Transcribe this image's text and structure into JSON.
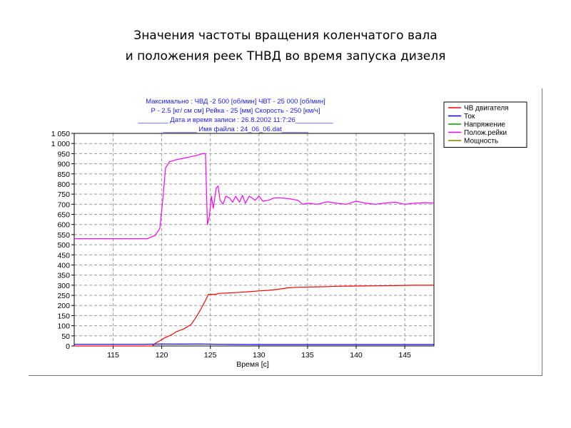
{
  "slide": {
    "title_line1": "Значения частоты вращения коленчатого вала",
    "title_line2": "и положения реек ТНВД во время запуска дизеля"
  },
  "chart_data": {
    "type": "line",
    "header_lines": [
      "Максимально :    ЧВД -2 500  [об/мин]    ЧВТ - 25 000 [об/мин]",
      "Р - 2.5 [кг/ см см]    Рейка - 25 [мм]  Скорость - 250 [км/ч]",
      "________ Дата и время записи : 26.8.2002 11:7:26__________",
      "_________ Имя файла : 24_06_06.dat_______"
    ],
    "xlabel": "Время [с]",
    "ylabel": "",
    "xlim": [
      111,
      148
    ],
    "ylim": [
      0,
      1050
    ],
    "x_ticks": [
      115,
      120,
      125,
      130,
      135,
      140,
      145
    ],
    "y_ticks": [
      0,
      50,
      100,
      150,
      200,
      250,
      300,
      350,
      400,
      450,
      500,
      550,
      600,
      650,
      700,
      750,
      800,
      850,
      900,
      950,
      1000,
      1050
    ],
    "y_tick_labels": [
      "0",
      "50",
      "100",
      "150",
      "200",
      "250",
      "300",
      "350",
      "400",
      "450",
      "500",
      "550",
      "600",
      "650",
      "700",
      "750",
      "800",
      "850",
      "900",
      "950",
      "1 000",
      "1 050"
    ],
    "grid": true,
    "legend_position": "right",
    "series": [
      {
        "name": "ЧВ двигателя",
        "color": "#ff0000",
        "points": [
          [
            111,
            0
          ],
          [
            119,
            0
          ],
          [
            119.4,
            15
          ],
          [
            119.8,
            25
          ],
          [
            120.3,
            40
          ],
          [
            121,
            55
          ],
          [
            121.5,
            70
          ],
          [
            122.3,
            85
          ],
          [
            123,
            105
          ],
          [
            123.5,
            140
          ],
          [
            124,
            180
          ],
          [
            124.5,
            225
          ],
          [
            124.8,
            255
          ],
          [
            125.5,
            255
          ],
          [
            126,
            260
          ],
          [
            127,
            262
          ],
          [
            128,
            265
          ],
          [
            129,
            268
          ],
          [
            130,
            272
          ],
          [
            131,
            275
          ],
          [
            132,
            280
          ],
          [
            133,
            287
          ],
          [
            134,
            290
          ],
          [
            136,
            292
          ],
          [
            137,
            293
          ],
          [
            138,
            295
          ],
          [
            140,
            296
          ],
          [
            142,
            297
          ],
          [
            144,
            298
          ],
          [
            146,
            300
          ],
          [
            148,
            300
          ]
        ]
      },
      {
        "name": "Ток",
        "color": "#0000ff",
        "points": [
          [
            111,
            8
          ],
          [
            118,
            8
          ],
          [
            120,
            10
          ],
          [
            122,
            9
          ],
          [
            124,
            10
          ],
          [
            126,
            8
          ],
          [
            130,
            7
          ],
          [
            135,
            7
          ],
          [
            140,
            7
          ],
          [
            148,
            7
          ]
        ]
      },
      {
        "name": "Напряжение",
        "color": "#00a000",
        "points": []
      },
      {
        "name": "Полож.рейки",
        "color": "#ff00ff",
        "points": [
          [
            111,
            530
          ],
          [
            118.5,
            530
          ],
          [
            119.3,
            545
          ],
          [
            119.8,
            580
          ],
          [
            120.1,
            720
          ],
          [
            120.4,
            880
          ],
          [
            120.8,
            910
          ],
          [
            121.5,
            920
          ],
          [
            122.5,
            930
          ],
          [
            123.5,
            940
          ],
          [
            124.2,
            950
          ],
          [
            124.5,
            950
          ],
          [
            124.7,
            600
          ],
          [
            124.9,
            640
          ],
          [
            125.1,
            740
          ],
          [
            125.3,
            680
          ],
          [
            125.6,
            780
          ],
          [
            125.8,
            790
          ],
          [
            126,
            720
          ],
          [
            126.3,
            700
          ],
          [
            126.6,
            740
          ],
          [
            127,
            730
          ],
          [
            127.3,
            710
          ],
          [
            127.6,
            740
          ],
          [
            128,
            710
          ],
          [
            128.3,
            745
          ],
          [
            128.6,
            705
          ],
          [
            129,
            740
          ],
          [
            129.3,
            730
          ],
          [
            129.6,
            720
          ],
          [
            130,
            740
          ],
          [
            130.4,
            715
          ],
          [
            131,
            720
          ],
          [
            131.5,
            730
          ],
          [
            132,
            732
          ],
          [
            133,
            728
          ],
          [
            134,
            720
          ],
          [
            134.5,
            700
          ],
          [
            135,
            705
          ],
          [
            136,
            700
          ],
          [
            137,
            712
          ],
          [
            138,
            705
          ],
          [
            139,
            700
          ],
          [
            140,
            715
          ],
          [
            141,
            705
          ],
          [
            142,
            700
          ],
          [
            143,
            706
          ],
          [
            144,
            710
          ],
          [
            145,
            700
          ],
          [
            146,
            705
          ],
          [
            147,
            708
          ],
          [
            148,
            706
          ]
        ]
      },
      {
        "name": "Мощность",
        "color": "#808000",
        "points": []
      }
    ]
  }
}
